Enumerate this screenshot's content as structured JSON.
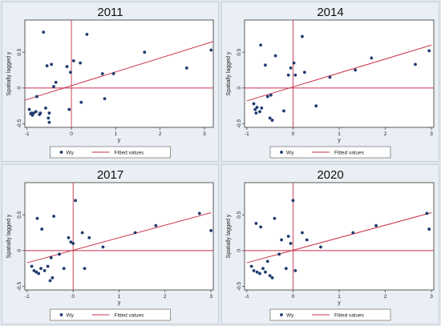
{
  "chart_data": [
    {
      "type": "scatter",
      "title": "2011",
      "xlabel": "y",
      "ylabel": "Spatially lagged y",
      "xlim": [
        -1.05,
        3.2
      ],
      "ylim": [
        -0.55,
        0.95
      ],
      "xticks": [
        "-1",
        "0",
        "1",
        "2",
        "3"
      ],
      "yticks": [
        "-0.5",
        "0",
        "0.5"
      ],
      "legend": {
        "marker_label": "Wy",
        "line_label": "Fitted values",
        "placement": "bottom"
      },
      "series": [
        {
          "name": "Wy",
          "points": [
            [
              -0.95,
              -0.3
            ],
            [
              -0.92,
              -0.36
            ],
            [
              -0.9,
              -0.35
            ],
            [
              -0.88,
              -0.38
            ],
            [
              -0.85,
              -0.35
            ],
            [
              -0.8,
              -0.33
            ],
            [
              -0.78,
              -0.12
            ],
            [
              -0.72,
              -0.37
            ],
            [
              -0.7,
              -0.35
            ],
            [
              -0.63,
              0.78
            ],
            [
              -0.58,
              -0.28
            ],
            [
              -0.55,
              0.31
            ],
            [
              -0.52,
              -0.42
            ],
            [
              -0.5,
              -0.35
            ],
            [
              -0.5,
              -0.48
            ],
            [
              -0.45,
              0.33
            ],
            [
              -0.4,
              0.02
            ],
            [
              -0.35,
              0.08
            ],
            [
              -0.1,
              0.3
            ],
            [
              -0.05,
              -0.3
            ],
            [
              -0.02,
              0.22
            ],
            [
              0.05,
              0.38
            ],
            [
              0.2,
              0.35
            ],
            [
              0.22,
              -0.2
            ],
            [
              0.35,
              0.75
            ],
            [
              0.7,
              0.2
            ],
            [
              0.75,
              -0.15
            ],
            [
              0.95,
              0.2
            ],
            [
              1.65,
              0.5
            ],
            [
              2.6,
              0.28
            ],
            [
              3.15,
              0.53
            ]
          ]
        },
        {
          "name": "Fitted values",
          "line": [
            [
              -1.05,
              -0.17
            ],
            [
              3.2,
              0.65
            ]
          ]
        }
      ]
    },
    {
      "type": "scatter",
      "title": "2014",
      "xlabel": "y",
      "ylabel": "Spatially lagged y",
      "xlim": [
        -1.05,
        3.05
      ],
      "ylim": [
        -0.55,
        0.95
      ],
      "xticks": [
        "-1",
        "0",
        "1",
        "2",
        "3"
      ],
      "yticks": [
        "-0.5",
        "0",
        "0.5"
      ],
      "legend": {
        "marker_label": "Wy",
        "line_label": "Fitted values",
        "placement": "bottom"
      },
      "series": [
        {
          "name": "Wy",
          "points": [
            [
              -0.85,
              -0.22
            ],
            [
              -0.82,
              -0.3
            ],
            [
              -0.8,
              -0.35
            ],
            [
              -0.78,
              -0.27
            ],
            [
              -0.72,
              -0.33
            ],
            [
              -0.7,
              0.6
            ],
            [
              -0.68,
              -0.28
            ],
            [
              -0.6,
              0.32
            ],
            [
              -0.55,
              -0.12
            ],
            [
              -0.5,
              -0.42
            ],
            [
              -0.48,
              -0.1
            ],
            [
              -0.45,
              -0.45
            ],
            [
              -0.38,
              0.45
            ],
            [
              -0.2,
              -0.32
            ],
            [
              -0.1,
              0.18
            ],
            [
              -0.05,
              0.28
            ],
            [
              0.02,
              0.35
            ],
            [
              0.05,
              0.18
            ],
            [
              0.2,
              0.72
            ],
            [
              0.25,
              0.22
            ],
            [
              0.5,
              -0.25
            ],
            [
              0.8,
              0.15
            ],
            [
              1.35,
              0.25
            ],
            [
              1.7,
              0.42
            ],
            [
              2.65,
              0.33
            ],
            [
              2.95,
              0.52
            ]
          ]
        },
        {
          "name": "Fitted values",
          "line": [
            [
              -1.0,
              -0.18
            ],
            [
              3.0,
              0.6
            ]
          ]
        }
      ]
    },
    {
      "type": "scatter",
      "title": "2017",
      "xlabel": "y",
      "ylabel": "Spatially lagged y",
      "xlim": [
        -1.05,
        3.05
      ],
      "ylim": [
        -0.55,
        0.95
      ],
      "xticks": [
        "-1",
        "0",
        "1",
        "2",
        "3"
      ],
      "yticks": [
        "-0.5",
        "0",
        "0.5"
      ],
      "legend": {
        "marker_label": "Wy",
        "line_label": "Fitted values",
        "placement": "bottom"
      },
      "series": [
        {
          "name": "Wy",
          "points": [
            [
              -0.9,
              -0.22
            ],
            [
              -0.85,
              -0.28
            ],
            [
              -0.8,
              -0.3
            ],
            [
              -0.78,
              0.45
            ],
            [
              -0.75,
              -0.32
            ],
            [
              -0.7,
              -0.25
            ],
            [
              -0.68,
              0.3
            ],
            [
              -0.62,
              -0.28
            ],
            [
              -0.55,
              -0.22
            ],
            [
              -0.5,
              -0.42
            ],
            [
              -0.48,
              -0.1
            ],
            [
              -0.45,
              -0.38
            ],
            [
              -0.42,
              0.48
            ],
            [
              -0.3,
              -0.05
            ],
            [
              -0.2,
              -0.25
            ],
            [
              -0.1,
              0.18
            ],
            [
              -0.05,
              0.12
            ],
            [
              0.0,
              0.1
            ],
            [
              0.05,
              0.7
            ],
            [
              0.2,
              0.25
            ],
            [
              0.25,
              -0.25
            ],
            [
              0.35,
              0.18
            ],
            [
              0.65,
              0.05
            ],
            [
              1.35,
              0.25
            ],
            [
              1.8,
              0.35
            ],
            [
              2.75,
              0.52
            ],
            [
              3.0,
              0.28
            ]
          ]
        },
        {
          "name": "Fitted values",
          "line": [
            [
              -1.0,
              -0.17
            ],
            [
              3.0,
              0.53
            ]
          ]
        }
      ]
    },
    {
      "type": "scatter",
      "title": "2020",
      "xlabel": "y",
      "ylabel": "Spatially lagged y",
      "xlim": [
        -1.05,
        3.05
      ],
      "ylim": [
        -0.55,
        0.95
      ],
      "xticks": [
        "-1",
        "0",
        "1",
        "2",
        "3"
      ],
      "yticks": [
        "-0.5",
        "0",
        "0.5"
      ],
      "legend": {
        "marker_label": "Wy",
        "line_label": "Fitted values",
        "placement": "bottom"
      },
      "series": [
        {
          "name": "Wy",
          "points": [
            [
              -0.9,
              -0.22
            ],
            [
              -0.85,
              -0.28
            ],
            [
              -0.8,
              0.38
            ],
            [
              -0.78,
              -0.3
            ],
            [
              -0.72,
              -0.32
            ],
            [
              -0.7,
              0.33
            ],
            [
              -0.65,
              -0.25
            ],
            [
              -0.6,
              -0.3
            ],
            [
              -0.55,
              -0.15
            ],
            [
              -0.5,
              -0.35
            ],
            [
              -0.45,
              -0.38
            ],
            [
              -0.4,
              0.45
            ],
            [
              -0.3,
              -0.05
            ],
            [
              -0.25,
              0.15
            ],
            [
              -0.15,
              -0.25
            ],
            [
              -0.1,
              0.2
            ],
            [
              -0.05,
              0.1
            ],
            [
              0.0,
              0.7
            ],
            [
              0.05,
              -0.28
            ],
            [
              0.2,
              0.25
            ],
            [
              0.3,
              0.15
            ],
            [
              0.6,
              0.05
            ],
            [
              1.3,
              0.25
            ],
            [
              1.8,
              0.35
            ],
            [
              2.9,
              0.52
            ],
            [
              2.95,
              0.3
            ]
          ]
        },
        {
          "name": "Fitted values",
          "line": [
            [
              -1.0,
              -0.17
            ],
            [
              3.0,
              0.53
            ]
          ]
        }
      ]
    }
  ]
}
